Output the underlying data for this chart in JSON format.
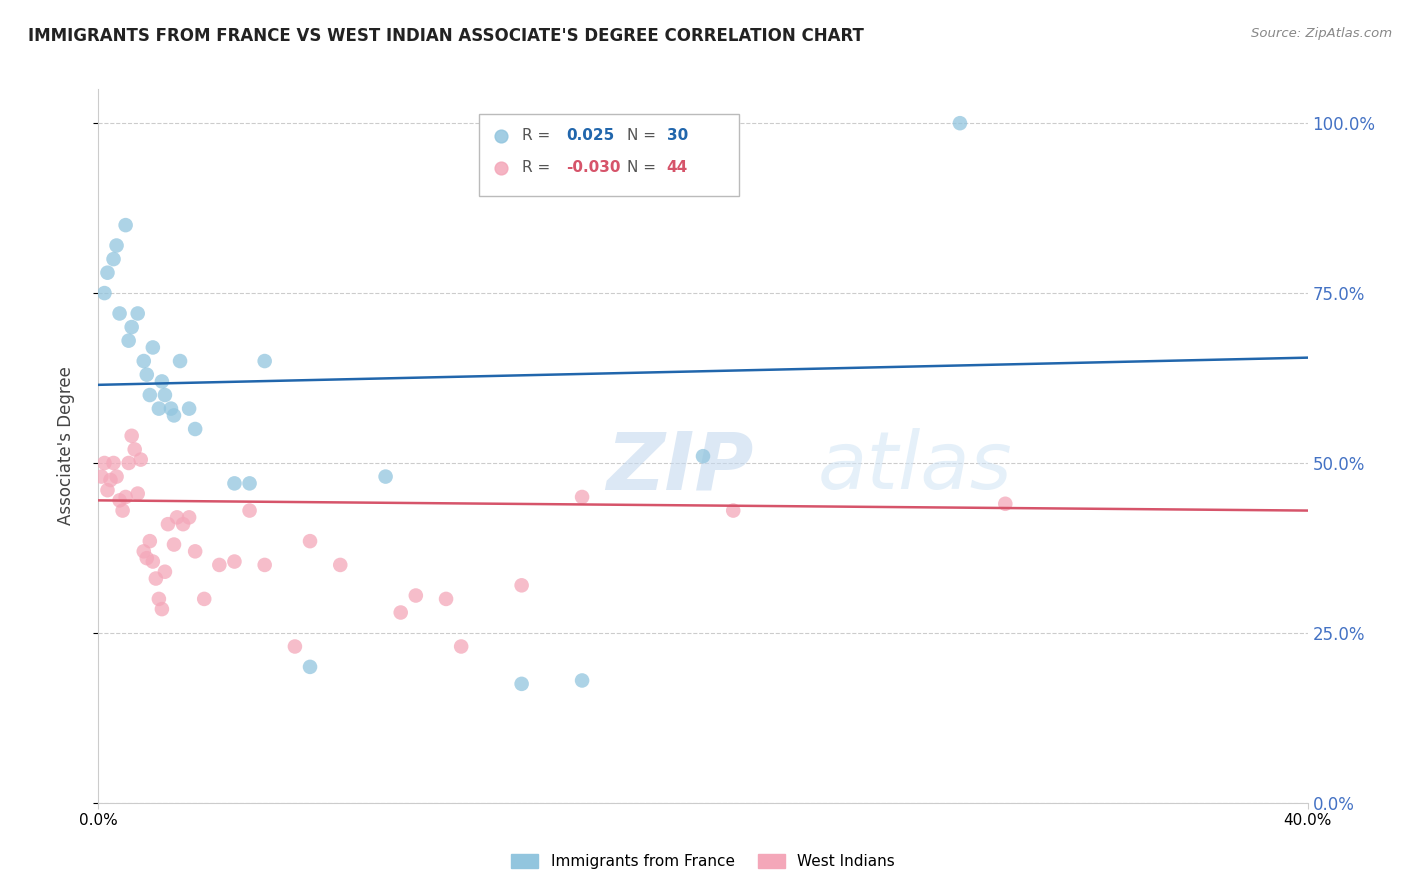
{
  "title": "IMMIGRANTS FROM FRANCE VS WEST INDIAN ASSOCIATE'S DEGREE CORRELATION CHART",
  "source": "Source: ZipAtlas.com",
  "ylabel": "Associate's Degree",
  "blue_label": "Immigrants from France",
  "pink_label": "West Indians",
  "blue_color": "#92c5de",
  "pink_color": "#f4a7b9",
  "blue_line_color": "#2166ac",
  "pink_line_color": "#d6546a",
  "watermark_zip": "ZIP",
  "watermark_atlas": "atlas",
  "xlim": [
    0.0,
    40.0
  ],
  "ylim": [
    0.0,
    105.0
  ],
  "ytick_values": [
    0.0,
    25.0,
    50.0,
    75.0,
    100.0
  ],
  "blue_r_val": "0.025",
  "blue_n_val": "30",
  "pink_r_val": "-0.030",
  "pink_n_val": "44",
  "blue_scatter_x": [
    0.2,
    0.3,
    0.5,
    0.6,
    0.7,
    0.9,
    1.0,
    1.1,
    1.3,
    1.5,
    1.6,
    1.7,
    1.8,
    2.0,
    2.1,
    2.2,
    2.4,
    2.5,
    2.7,
    3.0,
    3.2,
    4.5,
    5.0,
    5.5,
    7.0,
    9.5,
    14.0,
    16.0,
    20.0,
    28.5
  ],
  "blue_scatter_y": [
    75.0,
    78.0,
    80.0,
    82.0,
    72.0,
    85.0,
    68.0,
    70.0,
    72.0,
    65.0,
    63.0,
    60.0,
    67.0,
    58.0,
    62.0,
    60.0,
    58.0,
    57.0,
    65.0,
    58.0,
    55.0,
    47.0,
    47.0,
    65.0,
    20.0,
    48.0,
    17.5,
    18.0,
    51.0,
    100.0
  ],
  "pink_scatter_x": [
    0.1,
    0.2,
    0.3,
    0.4,
    0.5,
    0.6,
    0.7,
    0.8,
    0.9,
    1.0,
    1.1,
    1.2,
    1.3,
    1.4,
    1.5,
    1.6,
    1.7,
    1.8,
    1.9,
    2.0,
    2.1,
    2.2,
    2.3,
    2.5,
    2.6,
    2.8,
    3.0,
    3.2,
    3.5,
    4.0,
    4.5,
    5.0,
    5.5,
    6.5,
    7.0,
    8.0,
    10.0,
    10.5,
    11.5,
    12.0,
    14.0,
    16.0,
    21.0,
    30.0
  ],
  "pink_scatter_y": [
    48.0,
    50.0,
    46.0,
    47.5,
    50.0,
    48.0,
    44.5,
    43.0,
    45.0,
    50.0,
    54.0,
    52.0,
    45.5,
    50.5,
    37.0,
    36.0,
    38.5,
    35.5,
    33.0,
    30.0,
    28.5,
    34.0,
    41.0,
    38.0,
    42.0,
    41.0,
    42.0,
    37.0,
    30.0,
    35.0,
    35.5,
    43.0,
    35.0,
    23.0,
    38.5,
    35.0,
    28.0,
    30.5,
    30.0,
    23.0,
    32.0,
    45.0,
    43.0,
    44.0
  ],
  "blue_trend_x": [
    0.0,
    40.0
  ],
  "blue_trend_y": [
    61.5,
    65.5
  ],
  "pink_trend_x": [
    0.0,
    40.0
  ],
  "pink_trend_y": [
    44.5,
    43.0
  ]
}
